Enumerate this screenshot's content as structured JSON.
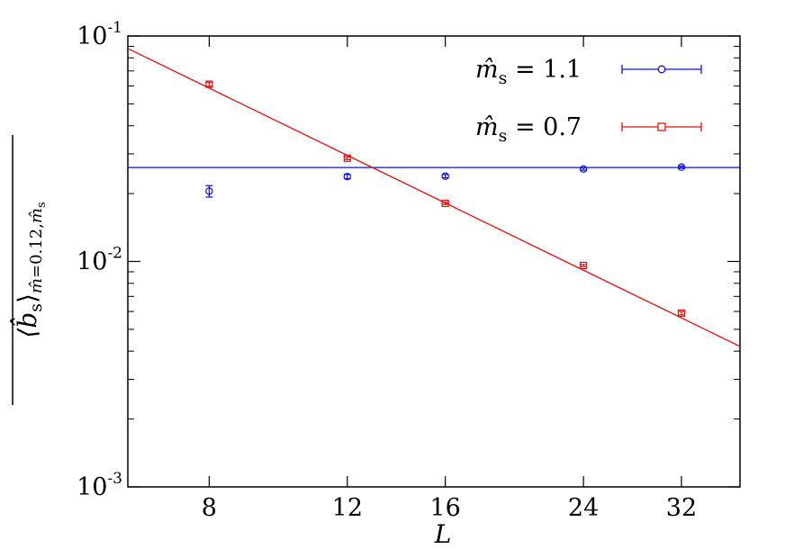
{
  "chart_data": {
    "type": "scatter",
    "xlabel": "L",
    "ylabel": "⟨b̂s⟩ m̂=0.12, m̂s",
    "x_ticks": [
      8,
      12,
      16,
      24,
      32
    ],
    "y_ticks": [
      {
        "base": "10",
        "exp": "-3",
        "value": 0.001
      },
      {
        "base": "10",
        "exp": "-2",
        "value": 0.01
      },
      {
        "base": "10",
        "exp": "-1",
        "value": 0.1
      }
    ],
    "x_scale": "log",
    "y_scale": "log",
    "xlim": [
      6.3,
      38
    ],
    "ylim": [
      0.001,
      0.1
    ],
    "grid": false,
    "legend_position": "top-right",
    "series": [
      {
        "name": "m̂s = 1.1",
        "legend_label": {
          "symbol": "m̂",
          "sub": "s",
          "value": "= 1.1"
        },
        "color": "#1010d0",
        "marker": "circle",
        "points": [
          {
            "x": 8,
            "y": 0.0205,
            "err": 0.0012
          },
          {
            "x": 12,
            "y": 0.0238,
            "err": 0.0005
          },
          {
            "x": 16,
            "y": 0.0239,
            "err": 0.0004
          },
          {
            "x": 24,
            "y": 0.0257,
            "err": 0.0003
          },
          {
            "x": 32,
            "y": 0.0262,
            "err": 0.0003
          }
        ],
        "fit": {
          "kind": "constant",
          "y": 0.0261
        }
      },
      {
        "name": "m̂s = 0.7",
        "legend_label": {
          "symbol": "m̂",
          "sub": "s",
          "value": "= 0.7"
        },
        "color": "#e01010",
        "marker": "square",
        "points": [
          {
            "x": 8,
            "y": 0.0611,
            "err": 0.0012
          },
          {
            "x": 12,
            "y": 0.0287,
            "err": 0.0004
          },
          {
            "x": 16,
            "y": 0.0181,
            "err": 0.0002
          },
          {
            "x": 24,
            "y": 0.0096,
            "err": 0.0001
          },
          {
            "x": 32,
            "y": 0.0059,
            "err": 0.0001
          }
        ],
        "fit": {
          "kind": "power",
          "x0": 6.3,
          "y0": 0.088,
          "x1": 38,
          "y1": 0.0042
        }
      }
    ]
  }
}
